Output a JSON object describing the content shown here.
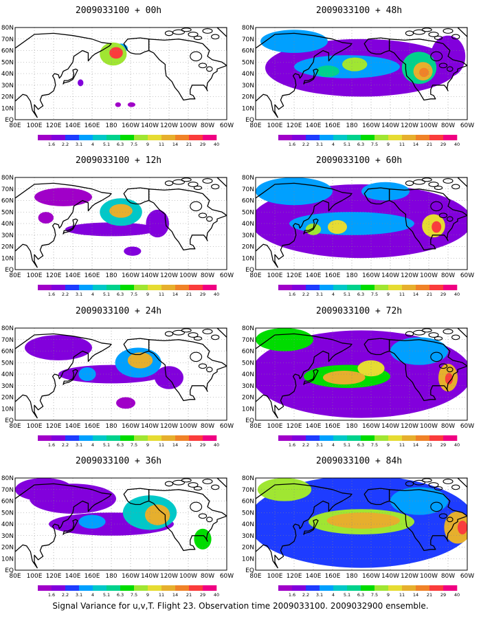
{
  "chart_data": {
    "type": "heatmap",
    "colorbar_levels": [
      "1.6",
      "2.2",
      "3.1",
      "4",
      "5.1",
      "6.3",
      "7.5",
      "9",
      "11",
      "14",
      "21",
      "29",
      "40"
    ],
    "colorbar_colors": [
      "#a000c8",
      "#8200dc",
      "#1e3cff",
      "#00a0ff",
      "#00c8c8",
      "#00d28c",
      "#00dc00",
      "#a0e632",
      "#e6dc32",
      "#e6af2d",
      "#f08228",
      "#fa3c3c",
      "#f00082"
    ],
    "x_ticks": [
      "80E",
      "100E",
      "120E",
      "140E",
      "160E",
      "180",
      "160W",
      "140W",
      "120W",
      "100W",
      "80W",
      "60W"
    ],
    "y_ticks": [
      "EQ",
      "10N",
      "20N",
      "30N",
      "40N",
      "50N",
      "60N",
      "70N",
      "80N"
    ],
    "xlim_lon_east": [
      80,
      300
    ],
    "ylim_lat": [
      0,
      80
    ],
    "grid": true,
    "panels": [
      {
        "title": "2009033100 + 00h",
        "blobs": [
          {
            "lon": 182,
            "lat": 57,
            "rx": 14,
            "ry": 10,
            "v": 9
          },
          {
            "lon": 185,
            "lat": 58,
            "rx": 7,
            "ry": 5,
            "v": 29
          },
          {
            "lon": 190,
            "lat": 62,
            "rx": 7,
            "ry": 4,
            "v": 5
          },
          {
            "lon": 148,
            "lat": 32,
            "rx": 3,
            "ry": 3,
            "v": 2.5
          },
          {
            "lon": 201,
            "lat": 13,
            "rx": 4,
            "ry": 2,
            "v": 2
          },
          {
            "lon": 187,
            "lat": 13,
            "rx": 3,
            "ry": 2,
            "v": 2
          }
        ]
      },
      {
        "title": "2009033100 + 12h",
        "blobs": [
          {
            "lon": 180,
            "lat": 35,
            "rx": 48,
            "ry": 6,
            "v": 2.3
          },
          {
            "lon": 190,
            "lat": 50,
            "rx": 22,
            "ry": 12,
            "v": 6
          },
          {
            "lon": 190,
            "lat": 51,
            "rx": 12,
            "ry": 6,
            "v": 14
          },
          {
            "lon": 202,
            "lat": 16,
            "rx": 9,
            "ry": 4,
            "v": 2.5
          },
          {
            "lon": 112,
            "lat": 45,
            "rx": 8,
            "ry": 5,
            "v": 2
          },
          {
            "lon": 228,
            "lat": 40,
            "rx": 12,
            "ry": 12,
            "v": 2.5
          },
          {
            "lon": 130,
            "lat": 63,
            "rx": 30,
            "ry": 8,
            "v": 2
          }
        ]
      },
      {
        "title": "2009033100 + 24h",
        "blobs": [
          {
            "lon": 180,
            "lat": 40,
            "rx": 55,
            "ry": 8,
            "v": 2.5
          },
          {
            "lon": 208,
            "lat": 50,
            "rx": 24,
            "ry": 13,
            "v": 5
          },
          {
            "lon": 210,
            "lat": 52,
            "rx": 13,
            "ry": 7,
            "v": 14
          },
          {
            "lon": 155,
            "lat": 40,
            "rx": 9,
            "ry": 6,
            "v": 4
          },
          {
            "lon": 125,
            "lat": 63,
            "rx": 35,
            "ry": 11,
            "v": 2.2
          },
          {
            "lon": 195,
            "lat": 15,
            "rx": 10,
            "ry": 5,
            "v": 2
          },
          {
            "lon": 240,
            "lat": 37,
            "rx": 15,
            "ry": 10,
            "v": 3
          }
        ]
      },
      {
        "title": "2009033100 + 36h",
        "blobs": [
          {
            "lon": 180,
            "lat": 40,
            "rx": 65,
            "ry": 10,
            "v": 3
          },
          {
            "lon": 220,
            "lat": 50,
            "rx": 28,
            "ry": 15,
            "v": 6
          },
          {
            "lon": 228,
            "lat": 48,
            "rx": 13,
            "ry": 9,
            "v": 16
          },
          {
            "lon": 160,
            "lat": 42,
            "rx": 14,
            "ry": 6,
            "v": 5
          },
          {
            "lon": 140,
            "lat": 62,
            "rx": 45,
            "ry": 13,
            "v": 2.5
          },
          {
            "lon": 275,
            "lat": 27,
            "rx": 9,
            "ry": 9,
            "v": 8
          },
          {
            "lon": 110,
            "lat": 70,
            "rx": 30,
            "ry": 10,
            "v": 3
          }
        ]
      },
      {
        "title": "2009033100 + 48h",
        "blobs": [
          {
            "lon": 190,
            "lat": 45,
            "rx": 100,
            "ry": 25,
            "v": 2.5
          },
          {
            "lon": 175,
            "lat": 46,
            "rx": 55,
            "ry": 10,
            "v": 5
          },
          {
            "lon": 183,
            "lat": 48,
            "rx": 13,
            "ry": 6,
            "v": 10
          },
          {
            "lon": 155,
            "lat": 42,
            "rx": 12,
            "ry": 5,
            "v": 7
          },
          {
            "lon": 250,
            "lat": 45,
            "rx": 18,
            "ry": 14,
            "v": 7
          },
          {
            "lon": 254,
            "lat": 42,
            "rx": 10,
            "ry": 8,
            "v": 16
          },
          {
            "lon": 255,
            "lat": 41,
            "rx": 5,
            "ry": 4,
            "v": 21
          },
          {
            "lon": 120,
            "lat": 68,
            "rx": 35,
            "ry": 10,
            "v": 4
          },
          {
            "lon": 280,
            "lat": 55,
            "rx": 18,
            "ry": 18,
            "v": 3
          }
        ]
      },
      {
        "title": "2009033100 + 60h",
        "blobs": [
          {
            "lon": 190,
            "lat": 42,
            "rx": 115,
            "ry": 32,
            "v": 2.5
          },
          {
            "lon": 180,
            "lat": 40,
            "rx": 65,
            "ry": 10,
            "v": 5
          },
          {
            "lon": 165,
            "lat": 37,
            "rx": 10,
            "ry": 6,
            "v": 11
          },
          {
            "lon": 140,
            "lat": 35,
            "rx": 8,
            "ry": 5,
            "v": 9
          },
          {
            "lon": 265,
            "lat": 38,
            "rx": 12,
            "ry": 10,
            "v": 11
          },
          {
            "lon": 268,
            "lat": 37,
            "rx": 5,
            "ry": 5,
            "v": 29
          },
          {
            "lon": 120,
            "lat": 68,
            "rx": 40,
            "ry": 12,
            "v": 5
          },
          {
            "lon": 215,
            "lat": 68,
            "rx": 25,
            "ry": 8,
            "v": 5
          }
        ]
      },
      {
        "title": "2009033100 + 72h",
        "blobs": [
          {
            "lon": 190,
            "lat": 40,
            "rx": 115,
            "ry": 38,
            "v": 3
          },
          {
            "lon": 175,
            "lat": 38,
            "rx": 45,
            "ry": 10,
            "v": 8
          },
          {
            "lon": 172,
            "lat": 37,
            "rx": 22,
            "ry": 6,
            "v": 14
          },
          {
            "lon": 200,
            "lat": 45,
            "rx": 14,
            "ry": 7,
            "v": 11
          },
          {
            "lon": 280,
            "lat": 37,
            "rx": 10,
            "ry": 12,
            "v": 14
          },
          {
            "lon": 281,
            "lat": 36,
            "rx": 4,
            "ry": 5,
            "v": 29
          },
          {
            "lon": 110,
            "lat": 70,
            "rx": 30,
            "ry": 10,
            "v": 8
          },
          {
            "lon": 250,
            "lat": 60,
            "rx": 30,
            "ry": 12,
            "v": 4
          }
        ]
      },
      {
        "title": "2009033100 + 84h",
        "blobs": [
          {
            "lon": 190,
            "lat": 42,
            "rx": 118,
            "ry": 40,
            "v": 3.5
          },
          {
            "lon": 190,
            "lat": 42,
            "rx": 55,
            "ry": 11,
            "v": 9
          },
          {
            "lon": 192,
            "lat": 43,
            "rx": 38,
            "ry": 7,
            "v": 16
          },
          {
            "lon": 110,
            "lat": 70,
            "rx": 28,
            "ry": 10,
            "v": 10
          },
          {
            "lon": 290,
            "lat": 37,
            "rx": 14,
            "ry": 14,
            "v": 14
          },
          {
            "lon": 295,
            "lat": 37,
            "rx": 5,
            "ry": 6,
            "v": 29
          },
          {
            "lon": 250,
            "lat": 60,
            "rx": 30,
            "ry": 12,
            "v": 5
          }
        ]
      }
    ]
  },
  "caption": "Signal Variance for u,v,T. Flight 23. Observation time 2009033100. 2009032900 ensemble."
}
